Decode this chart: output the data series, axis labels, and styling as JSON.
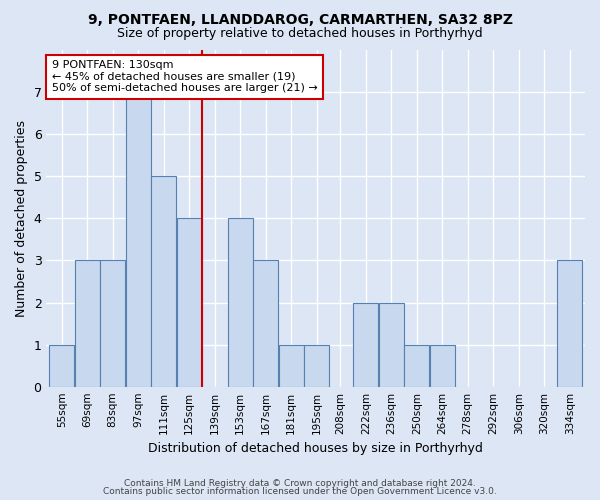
{
  "title1": "9, PONTFAEN, LLANDDAROG, CARMARTHEN, SA32 8PZ",
  "title2": "Size of property relative to detached houses in Porthyrhyd",
  "xlabel": "Distribution of detached houses by size in Porthyrhyd",
  "ylabel": "Number of detached properties",
  "footer1": "Contains HM Land Registry data © Crown copyright and database right 2024.",
  "footer2": "Contains public sector information licensed under the Open Government Licence v3.0.",
  "bins": [
    55,
    69,
    83,
    97,
    111,
    125,
    139,
    153,
    167,
    181,
    195,
    208,
    222,
    236,
    250,
    264,
    278,
    292,
    306,
    320,
    334
  ],
  "bin_labels": [
    "55sqm",
    "69sqm",
    "83sqm",
    "97sqm",
    "111sqm",
    "125sqm",
    "139sqm",
    "153sqm",
    "167sqm",
    "181sqm",
    "195sqm",
    "208sqm",
    "222sqm",
    "236sqm",
    "250sqm",
    "264sqm",
    "278sqm",
    "292sqm",
    "306sqm",
    "320sqm",
    "334sqm"
  ],
  "values": [
    1,
    3,
    3,
    7,
    5,
    4,
    0,
    4,
    3,
    1,
    1,
    0,
    2,
    2,
    1,
    1,
    0,
    0,
    0,
    0,
    3
  ],
  "bar_color": "#c8d8ee",
  "bar_edge_color": "#5580b0",
  "vline_x_bin_index": 5,
  "vline_color": "#cc0000",
  "annotation_line1": "9 PONTFAEN: 130sqm",
  "annotation_line2": "← 45% of detached houses are smaller (19)",
  "annotation_line3": "50% of semi-detached houses are larger (21) →",
  "annotation_box_color": "#ffffff",
  "annotation_box_edge": "#cc0000",
  "ylim": [
    0,
    8
  ],
  "yticks": [
    0,
    1,
    2,
    3,
    4,
    5,
    6,
    7
  ],
  "background_color": "#dce6f5",
  "plot_bg_color": "#dce6f5",
  "grid_color": "#ffffff"
}
